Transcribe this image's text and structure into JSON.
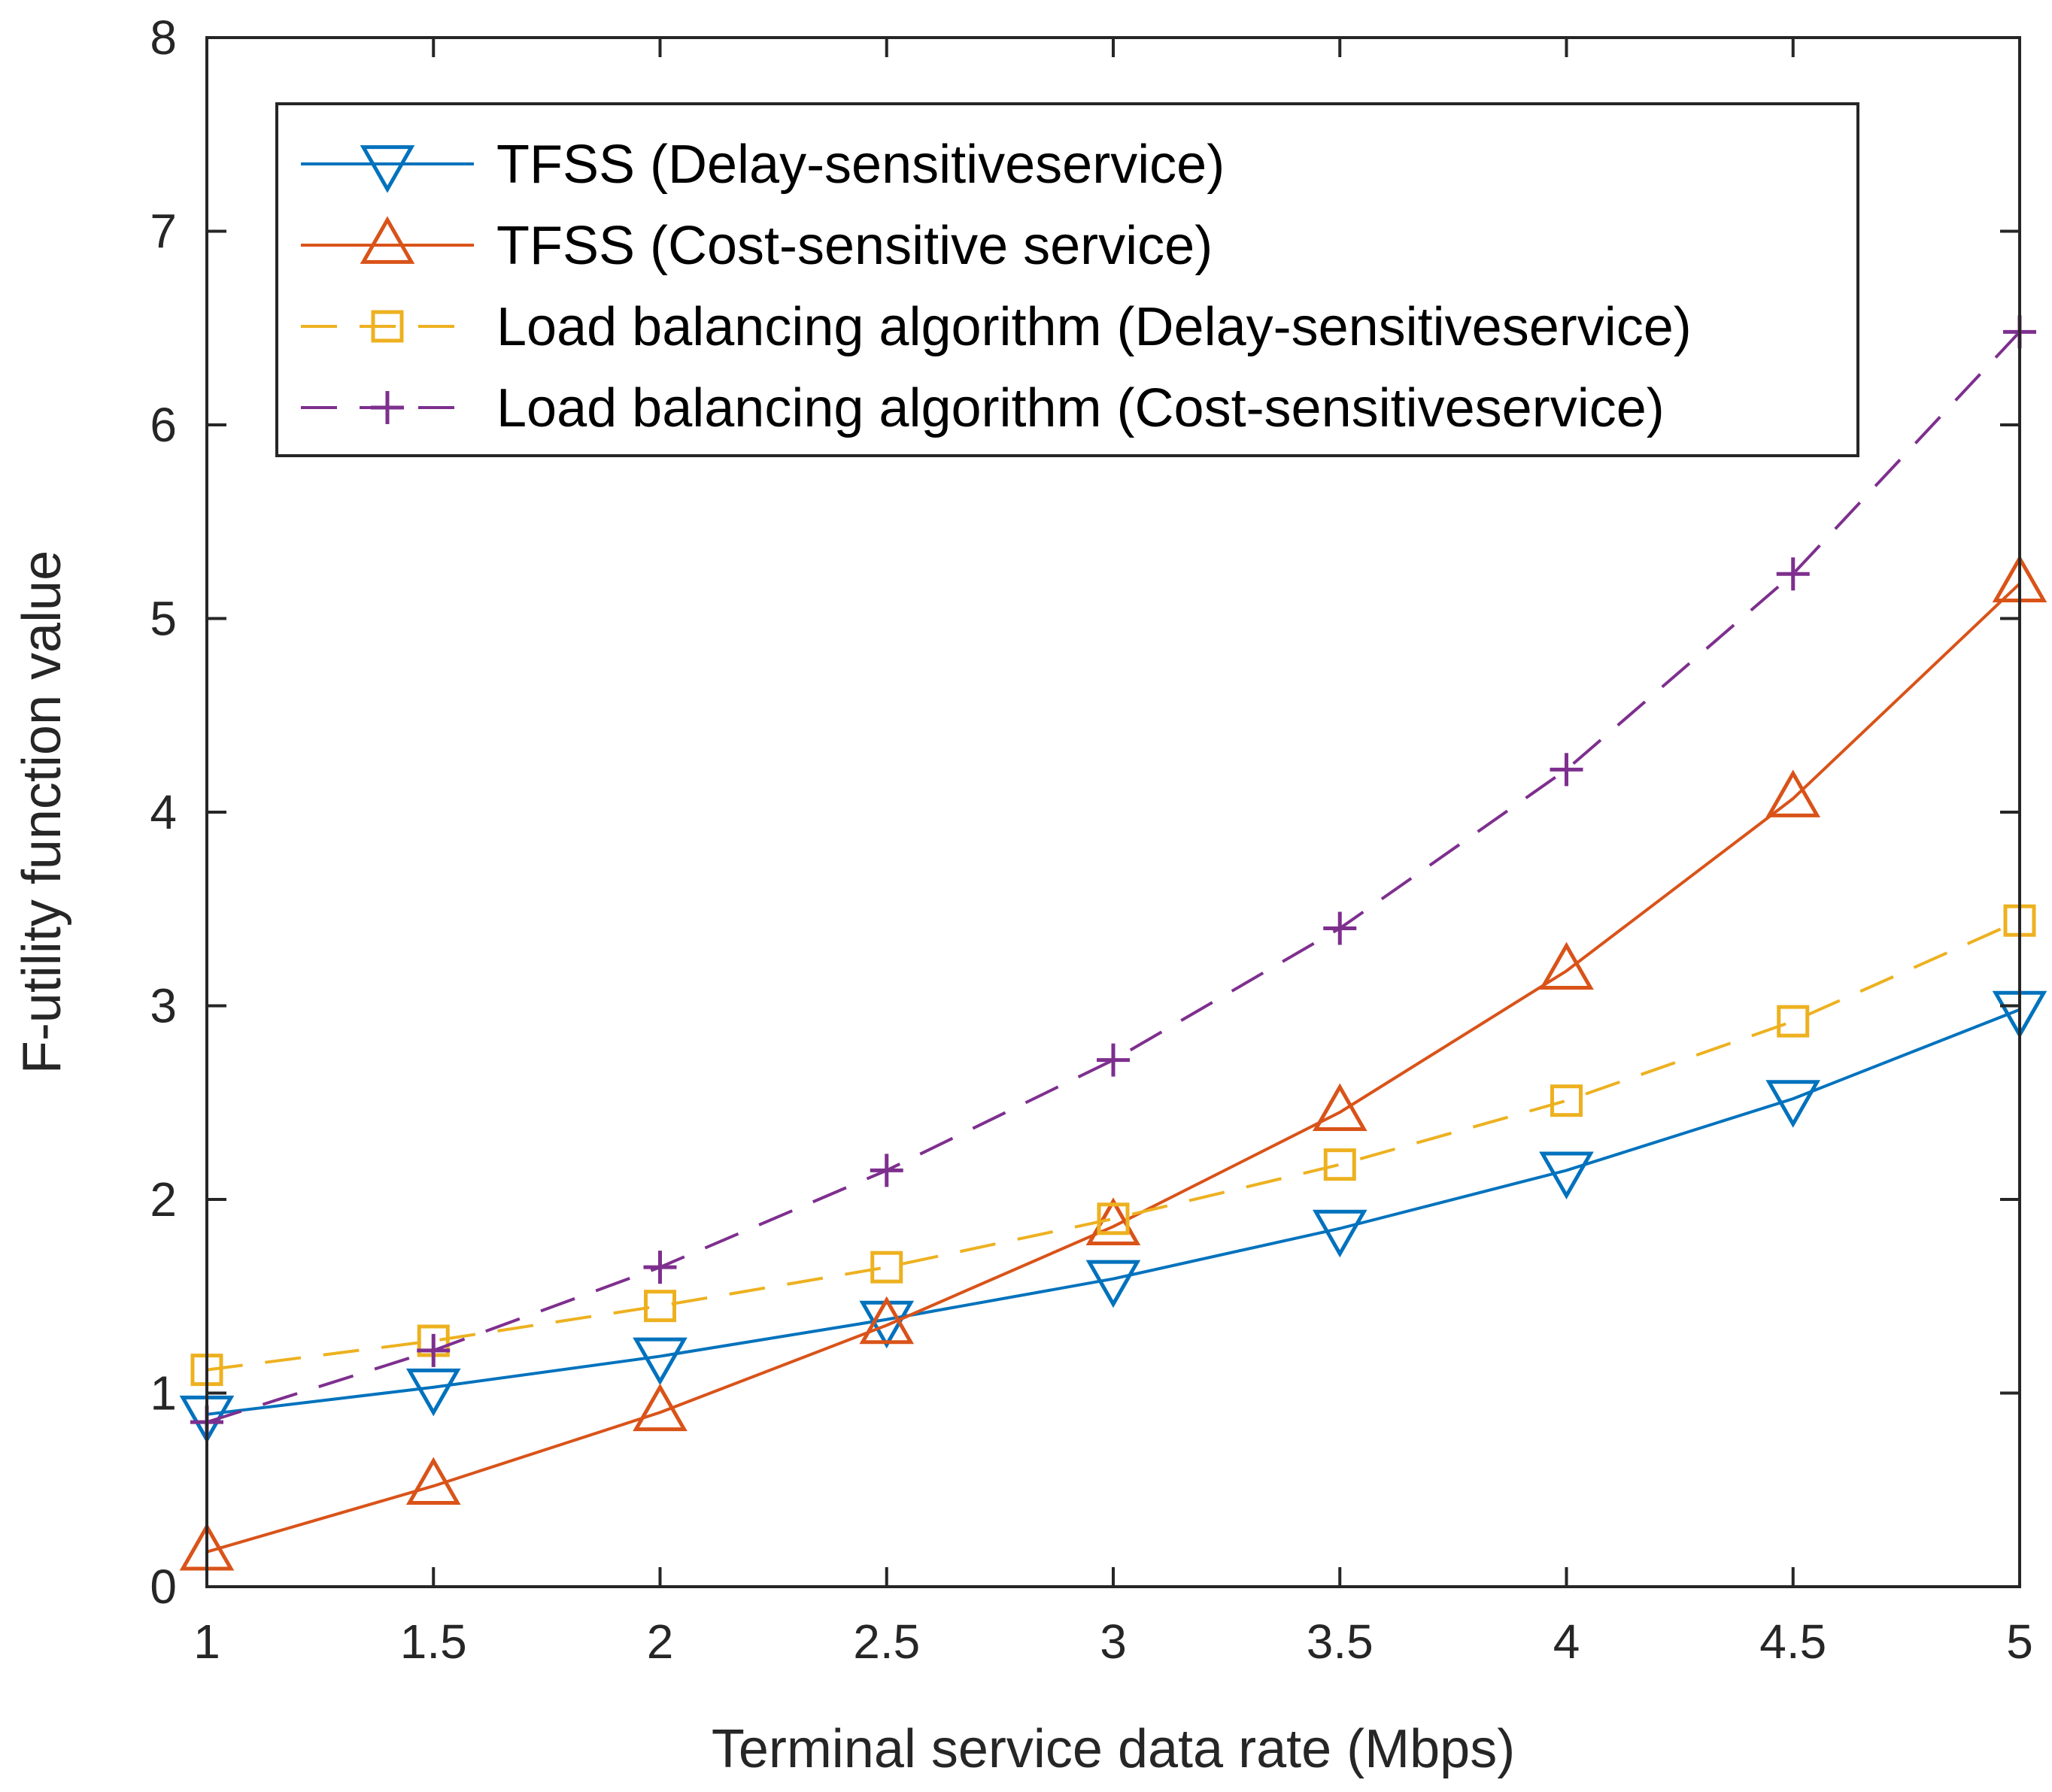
{
  "chart_data": {
    "type": "line",
    "title": "",
    "xlabel": "Terminal service data rate (Mbps)",
    "ylabel": "F-utility function value",
    "xlim": [
      1,
      5
    ],
    "ylim": [
      0,
      8
    ],
    "x_ticks": [
      1,
      1.5,
      2,
      2.5,
      3,
      3.5,
      4,
      4.5,
      5
    ],
    "x_tick_labels": [
      "1",
      "1.5",
      "2",
      "2.5",
      "3",
      "3.5",
      "4",
      "4.5",
      "5"
    ],
    "y_ticks": [
      0,
      1,
      2,
      3,
      4,
      5,
      6,
      7,
      8
    ],
    "y_tick_labels": [
      "0",
      "1",
      "2",
      "3",
      "4",
      "5",
      "6",
      "7",
      "8"
    ],
    "grid": false,
    "legend_position": "top-left",
    "x": [
      1,
      1.5,
      2,
      2.5,
      3,
      3.5,
      4,
      4.5,
      5
    ],
    "series": [
      {
        "name": "TFSS (Delay-sensitiveservice)",
        "color": "#0072BD",
        "marker": "triangle-down",
        "linestyle": "solid",
        "values": [
          0.89,
          1.03,
          1.19,
          1.38,
          1.59,
          1.85,
          2.15,
          2.52,
          2.98
        ]
      },
      {
        "name": "TFSS (Cost-sensitive service)",
        "color": "#D95319",
        "marker": "triangle-up",
        "linestyle": "solid",
        "values": [
          0.18,
          0.52,
          0.9,
          1.35,
          1.86,
          2.45,
          3.18,
          4.07,
          5.18
        ]
      },
      {
        "name": "Load balancing algorithm (Delay-sensitiveservice)",
        "color": "#EDB120",
        "marker": "square",
        "linestyle": "dashed",
        "values": [
          1.12,
          1.27,
          1.45,
          1.65,
          1.9,
          2.18,
          2.51,
          2.92,
          3.44
        ]
      },
      {
        "name": "Load balancing algorithm (Cost-sensitiveservice)",
        "color": "#7E2F8E",
        "marker": "plus",
        "linestyle": "dashed",
        "values": [
          0.85,
          1.22,
          1.65,
          2.15,
          2.72,
          3.4,
          4.22,
          5.23,
          6.48
        ]
      }
    ]
  }
}
